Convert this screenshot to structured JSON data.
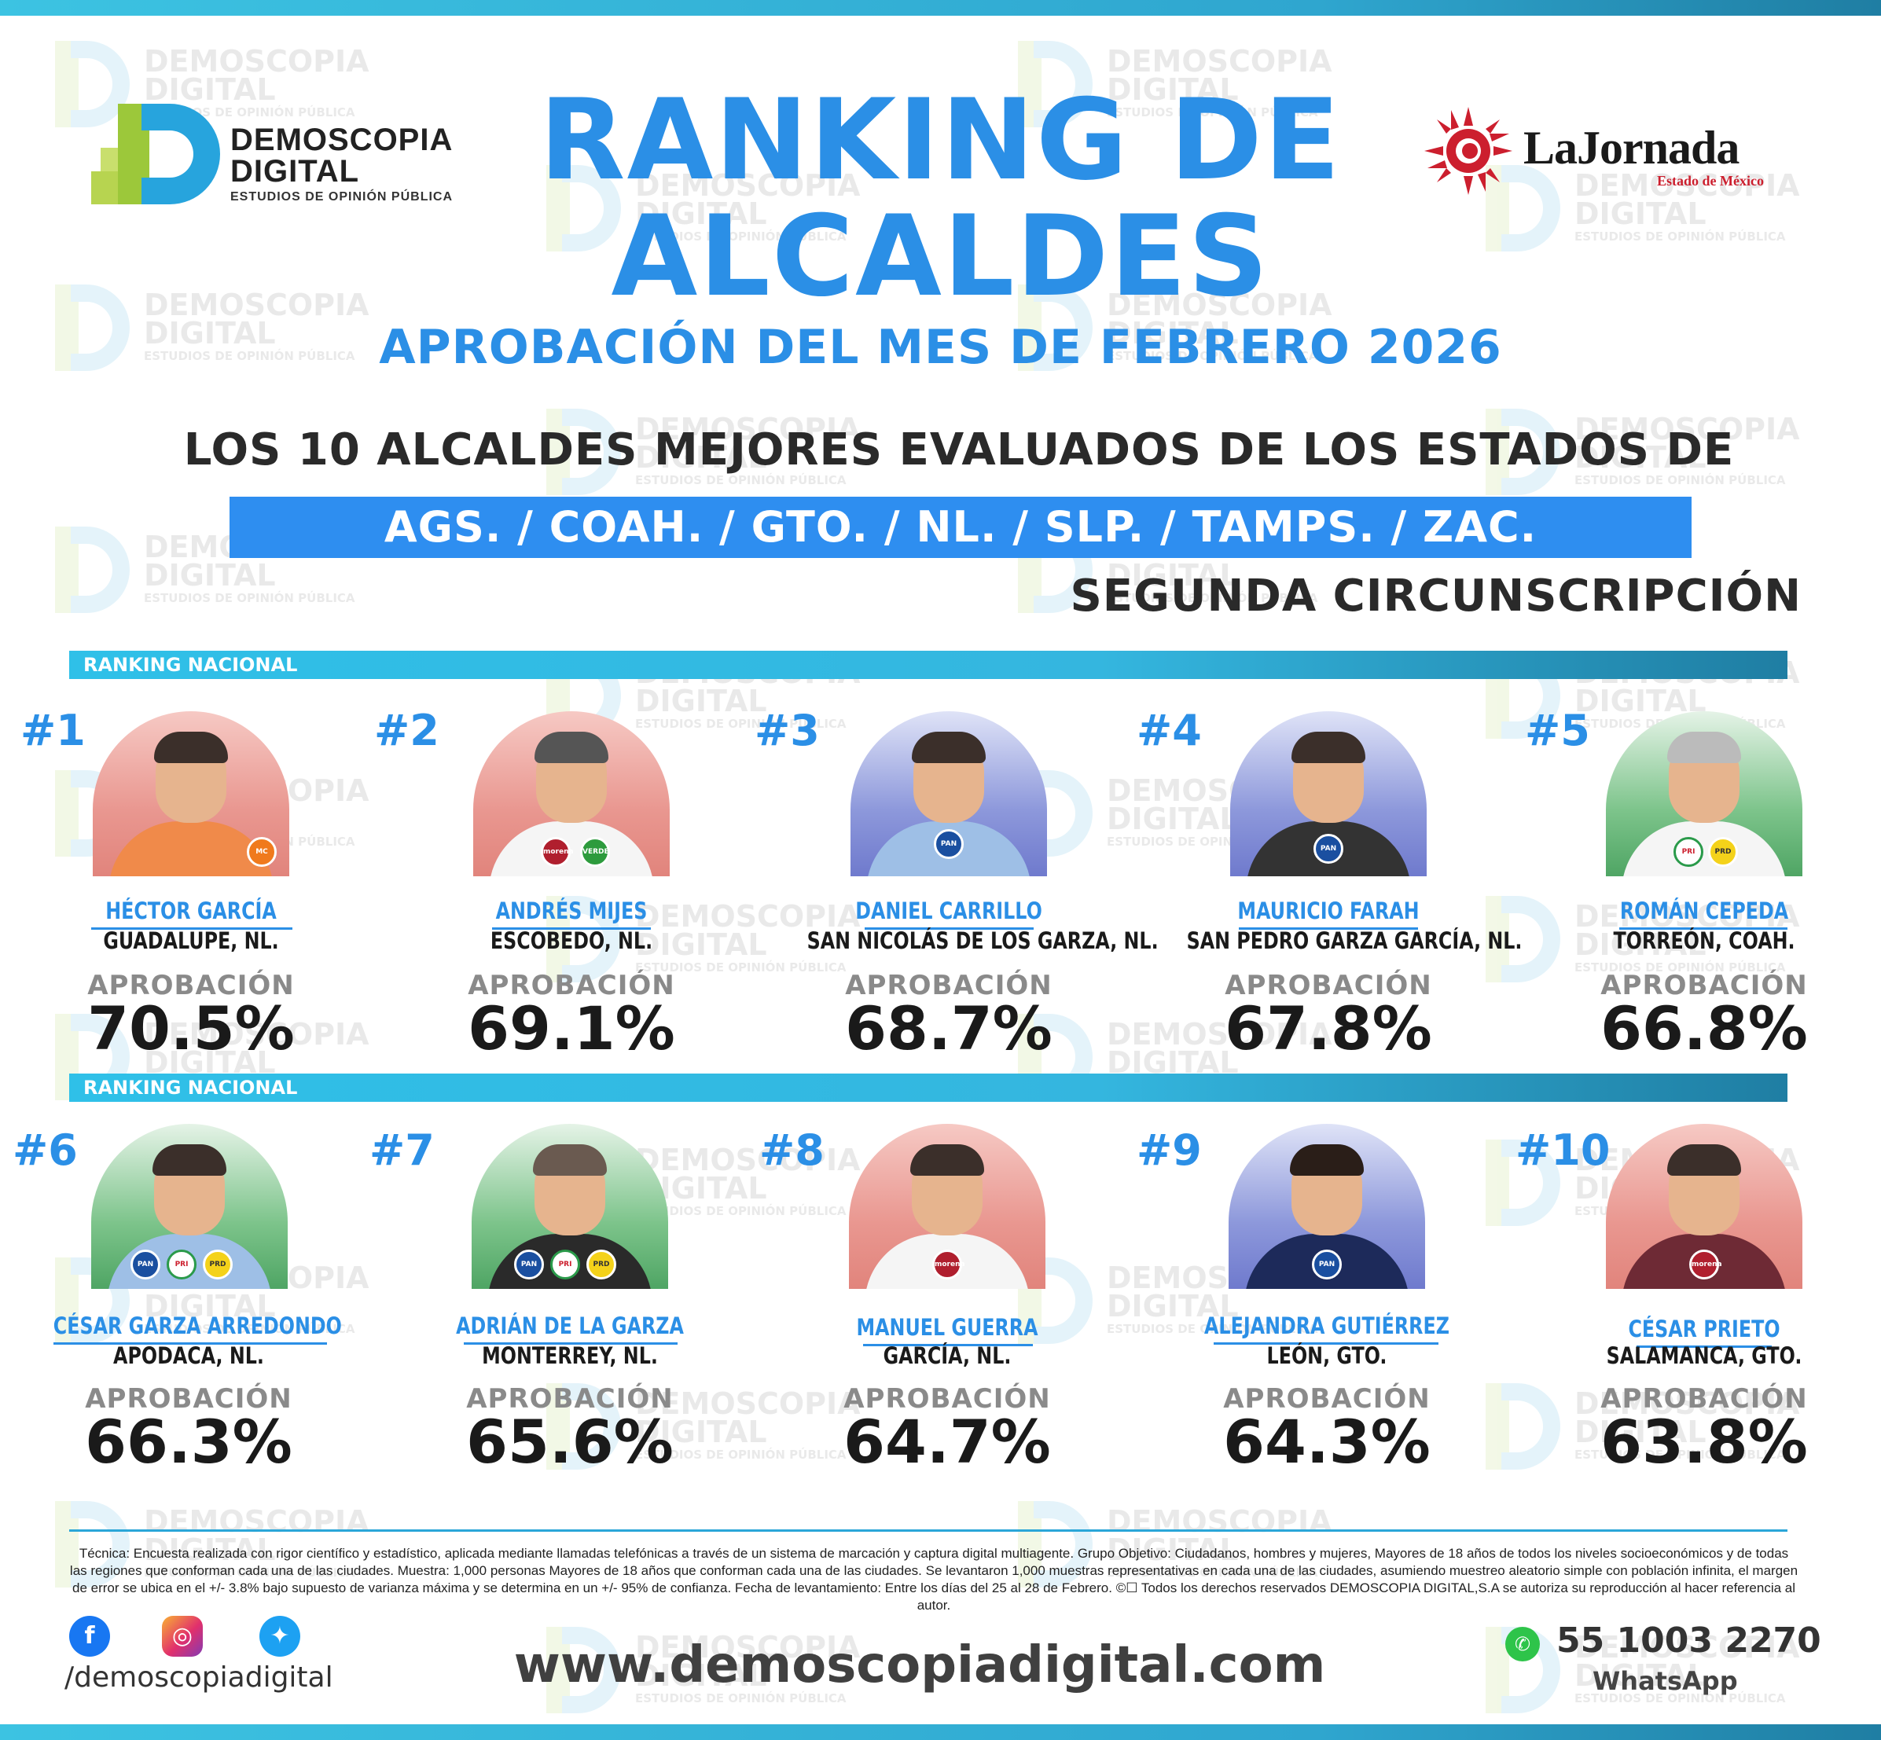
{
  "header": {
    "title_line1": "RANKING DE",
    "title_line2": "ALCALDES",
    "subtitle": "APROBACIÓN DEL MES DE FEBRERO 2026",
    "description": "LOS 10 ALCALDES MEJORES EVALUADOS DE LOS ESTADOS DE",
    "states": "AGS. /  COAH.  /  GTO.  /  NL.  /  SLP.  /  TAMPS.  /  ZAC.",
    "circunscripcion": "SEGUNDA CIRCUNSCRIPCIÓN"
  },
  "logo": {
    "line1": "DEMOSCOPIA",
    "line2": "DIGITAL",
    "tagline": "ESTUDIOS DE OPINIÓN PÚBLICA"
  },
  "partner": {
    "name": "LaJornada",
    "region": "Estado de México"
  },
  "watermark": {
    "line1": "DEMOSCOPIA",
    "line2": "DIGITAL",
    "line3": "ESTUDIOS DE OPINIÓN PÚBLICA"
  },
  "section_label": "RANKING NACIONAL",
  "approval_label": "APROBACIÓN",
  "mayors": [
    {
      "rank": "#1",
      "name": "HÉCTOR GARCÍA",
      "city": "GUADALUPE, NL.",
      "approval": "70.5%",
      "bg": "red",
      "parties": [
        "MC"
      ]
    },
    {
      "rank": "#2",
      "name": "ANDRÉS MIJES",
      "city": "ESCOBEDO, NL.",
      "approval": "69.1%",
      "bg": "red",
      "parties": [
        "morena",
        "VERDE"
      ]
    },
    {
      "rank": "#3",
      "name": "DANIEL CARRILLO",
      "city": "SAN NICOLÁS DE LOS GARZA, NL.",
      "approval": "68.7%",
      "bg": "blue",
      "parties": [
        "PAN"
      ]
    },
    {
      "rank": "#4",
      "name": "MAURICIO FARAH",
      "city": "SAN PEDRO GARZA GARCÍA, NL.",
      "approval": "67.8%",
      "bg": "blue",
      "parties": [
        "PAN"
      ]
    },
    {
      "rank": "#5",
      "name": "ROMÁN CEPEDA",
      "city": "TORREÓN, COAH.",
      "approval": "66.8%",
      "bg": "green",
      "parties": [
        "PRI",
        "PRD"
      ]
    },
    {
      "rank": "#6",
      "name": "CÉSAR GARZA ARREDONDO",
      "city": "APODACA, NL.",
      "approval": "66.3%",
      "bg": "green",
      "parties": [
        "PAN",
        "PRI",
        "PRD"
      ]
    },
    {
      "rank": "#7",
      "name": "ADRIÁN DE LA GARZA",
      "city": "MONTERREY, NL.",
      "approval": "65.6%",
      "bg": "green",
      "parties": [
        "PAN",
        "PRI",
        "PRD"
      ]
    },
    {
      "rank": "#8",
      "name": "MANUEL GUERRA",
      "city": "GARCÍA, NL.",
      "approval": "64.7%",
      "bg": "red",
      "parties": [
        "morena"
      ]
    },
    {
      "rank": "#9",
      "name": "ALEJANDRA GUTIÉRREZ",
      "city": "LEÓN, GTO.",
      "approval": "64.3%",
      "bg": "blue",
      "parties": [
        "PAN"
      ]
    },
    {
      "rank": "#10",
      "name": "CÉSAR PRIETO",
      "city": "SALAMANCA, GTO.",
      "approval": "63.8%",
      "bg": "red",
      "parties": [
        "morena"
      ]
    }
  ],
  "footer": {
    "technical_note": "Técnica: Encuesta realizada con rigor científico y estadístico, aplicada mediante llamadas telefónicas a través de un sistema de marcación y captura digital multiagente. Grupo Objetivo: Ciudadanos, hombres y mujeres, Mayores de 18 años de todos los niveles socioeconómicos y de todas las regiones que conforman cada una de las ciudades. Muestra: 1,000 personas Mayores de 18 años que conforman cada una de las ciudades. Se levantaron 1,000 muestras representativas en cada una de las ciudades, asumiendo muestreo aleatorio simple con población infinita, el margen de error se ubica en el +/- 3.8% bajo supuesto de varianza máxima y se determina en un +/- 95% de confianza. Fecha de levantamiento: Entre los días del 25 al 28 de Febrero. ©☐ Todos los derechos reservados DEMOSCOPIA DIGITAL,S.A se autoriza su reproducción al hacer referencia al autor.",
    "social_handle": "/demoscopiadigital",
    "website": "www.demoscopiadigital.com",
    "phone": "55 1003 2270",
    "phone_label": "WhatsApp",
    "icons": [
      "facebook-icon",
      "instagram-icon",
      "twitter-icon",
      "whatsapp-icon"
    ]
  }
}
